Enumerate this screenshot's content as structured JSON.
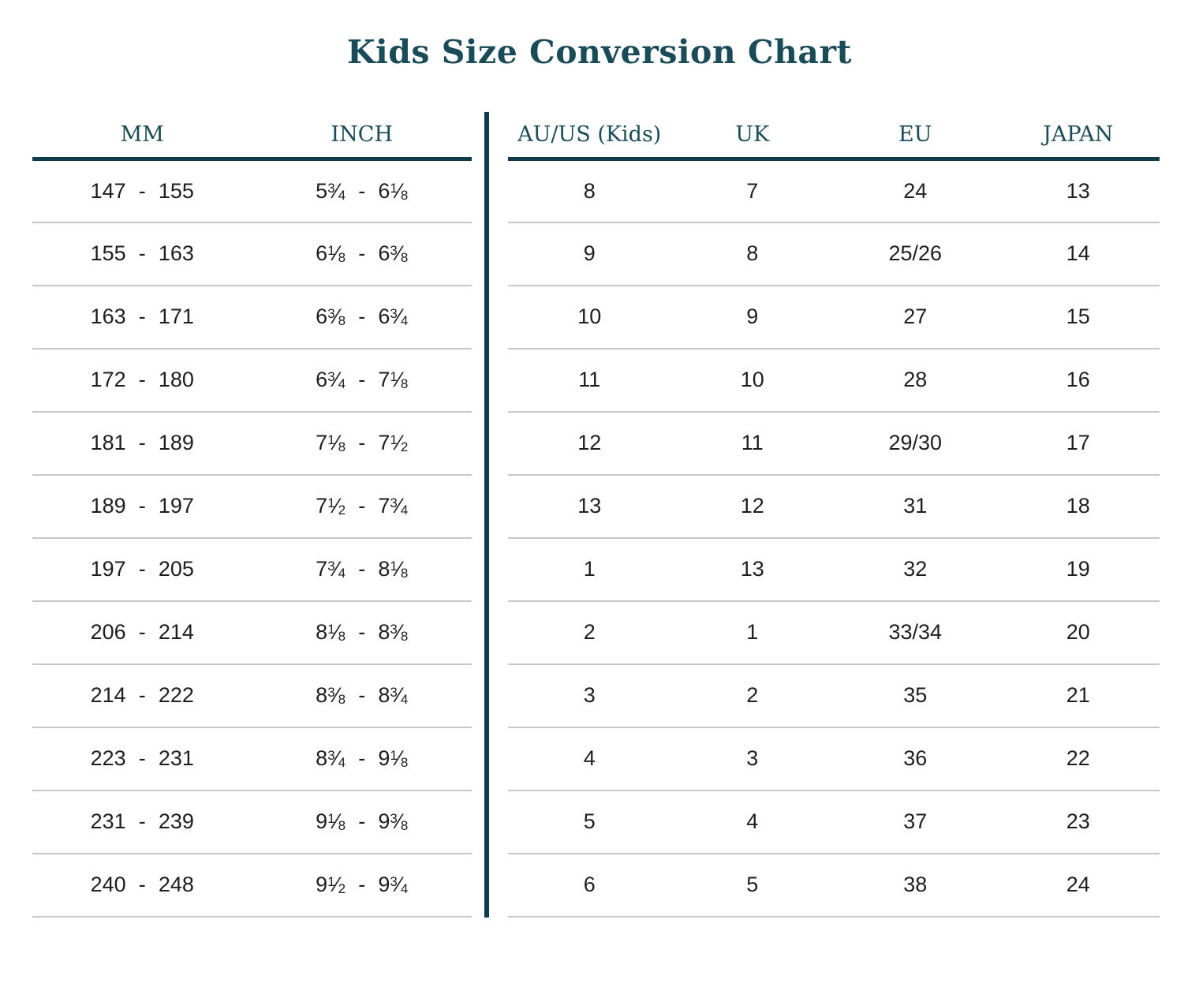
{
  "page": {
    "title": "Kids Size Conversion Chart"
  },
  "colors": {
    "accent": "#0f3c4a",
    "heading_text": "#1a4b58",
    "row_separator": "#c7c7c7",
    "cell_text": "#1e1e1e"
  },
  "chart_data": {
    "type": "table",
    "title": "Kids Size Conversion Chart",
    "measurement_table": {
      "columns": [
        "MM",
        "INCH"
      ],
      "rows": [
        [
          "147 - 155",
          "5 3/4 - 6 1/8"
        ],
        [
          "155 - 163",
          "6 1/8 - 6 3/8"
        ],
        [
          "163 - 171",
          "6 3/8 - 6 3/4"
        ],
        [
          "172 - 180",
          "6 3/4 - 7 1/8"
        ],
        [
          "181 - 189",
          "7 1/8 - 7 1/2"
        ],
        [
          "189 - 197",
          "7 1/2 - 7 3/4"
        ],
        [
          "197 - 205",
          "7 3/4 - 8 1/8"
        ],
        [
          "206 - 214",
          "8 1/8 - 8 3/8"
        ],
        [
          "214 - 222",
          "8 3/8 - 8 3/4"
        ],
        [
          "223 - 231",
          "8 3/4 - 9 1/8"
        ],
        [
          "231 - 239",
          "9 1/8 - 9 3/8"
        ],
        [
          "240 - 248",
          "9 1/2 - 9 3/4"
        ]
      ]
    },
    "size_table": {
      "columns": [
        "AU/US (Kids)",
        "UK",
        "EU",
        "JAPAN"
      ],
      "rows": [
        [
          "8",
          "7",
          "24",
          "13"
        ],
        [
          "9",
          "8",
          "25/26",
          "14"
        ],
        [
          "10",
          "9",
          "27",
          "15"
        ],
        [
          "11",
          "10",
          "28",
          "16"
        ],
        [
          "12",
          "11",
          "29/30",
          "17"
        ],
        [
          "13",
          "12",
          "31",
          "18"
        ],
        [
          "1",
          "13",
          "32",
          "19"
        ],
        [
          "2",
          "1",
          "33/34",
          "20"
        ],
        [
          "3",
          "2",
          "35",
          "21"
        ],
        [
          "4",
          "3",
          "36",
          "22"
        ],
        [
          "5",
          "4",
          "37",
          "23"
        ],
        [
          "6",
          "5",
          "38",
          "24"
        ]
      ]
    }
  }
}
